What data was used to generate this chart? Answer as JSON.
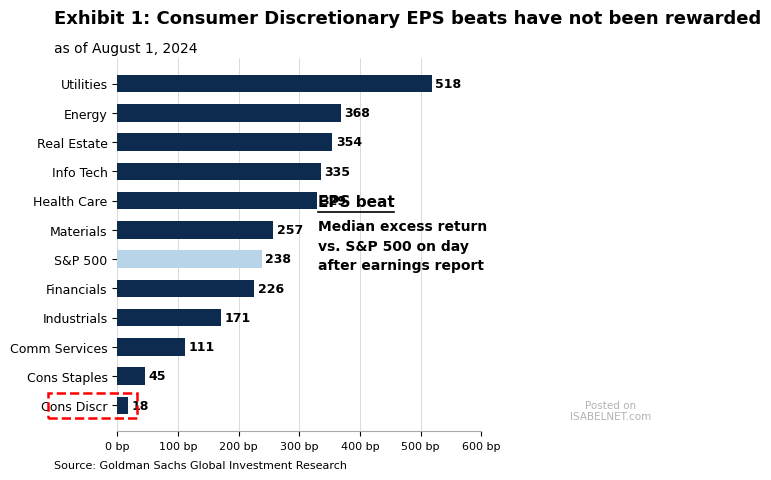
{
  "title": "Exhibit 1: Consumer Discretionary EPS beats have not been rewarded",
  "subtitle": "as of August 1, 2024",
  "source": "Source: Goldman Sachs Global Investment Research",
  "categories": [
    "Utilities",
    "Energy",
    "Real Estate",
    "Info Tech",
    "Health Care",
    "Materials",
    "S&P 500",
    "Financials",
    "Industrials",
    "Comm Services",
    "Cons Staples",
    "Cons Discr"
  ],
  "values": [
    518,
    368,
    354,
    335,
    329,
    257,
    238,
    226,
    171,
    111,
    45,
    18
  ],
  "bar_colors": [
    "#0d2b4e",
    "#0d2b4e",
    "#0d2b4e",
    "#0d2b4e",
    "#0d2b4e",
    "#0d2b4e",
    "#b8d4e8",
    "#0d2b4e",
    "#0d2b4e",
    "#0d2b4e",
    "#0d2b4e",
    "#0d2b4e"
  ],
  "highlight_index": 6,
  "highlight_border_index": 11,
  "xlim": [
    0,
    600
  ],
  "xticks": [
    0,
    100,
    200,
    300,
    400,
    500,
    600
  ],
  "xlabel_suffix": " bp",
  "annotation_line1": "EPS beat",
  "annotation_line2": "Median excess return\nvs. S&P 500 on day\nafter earnings report",
  "background_color": "#ffffff",
  "bar_height": 0.6,
  "title_fontsize": 13,
  "subtitle_fontsize": 10,
  "value_label_fontsize": 9,
  "watermark_text": "Posted on\nISABELNET.com"
}
